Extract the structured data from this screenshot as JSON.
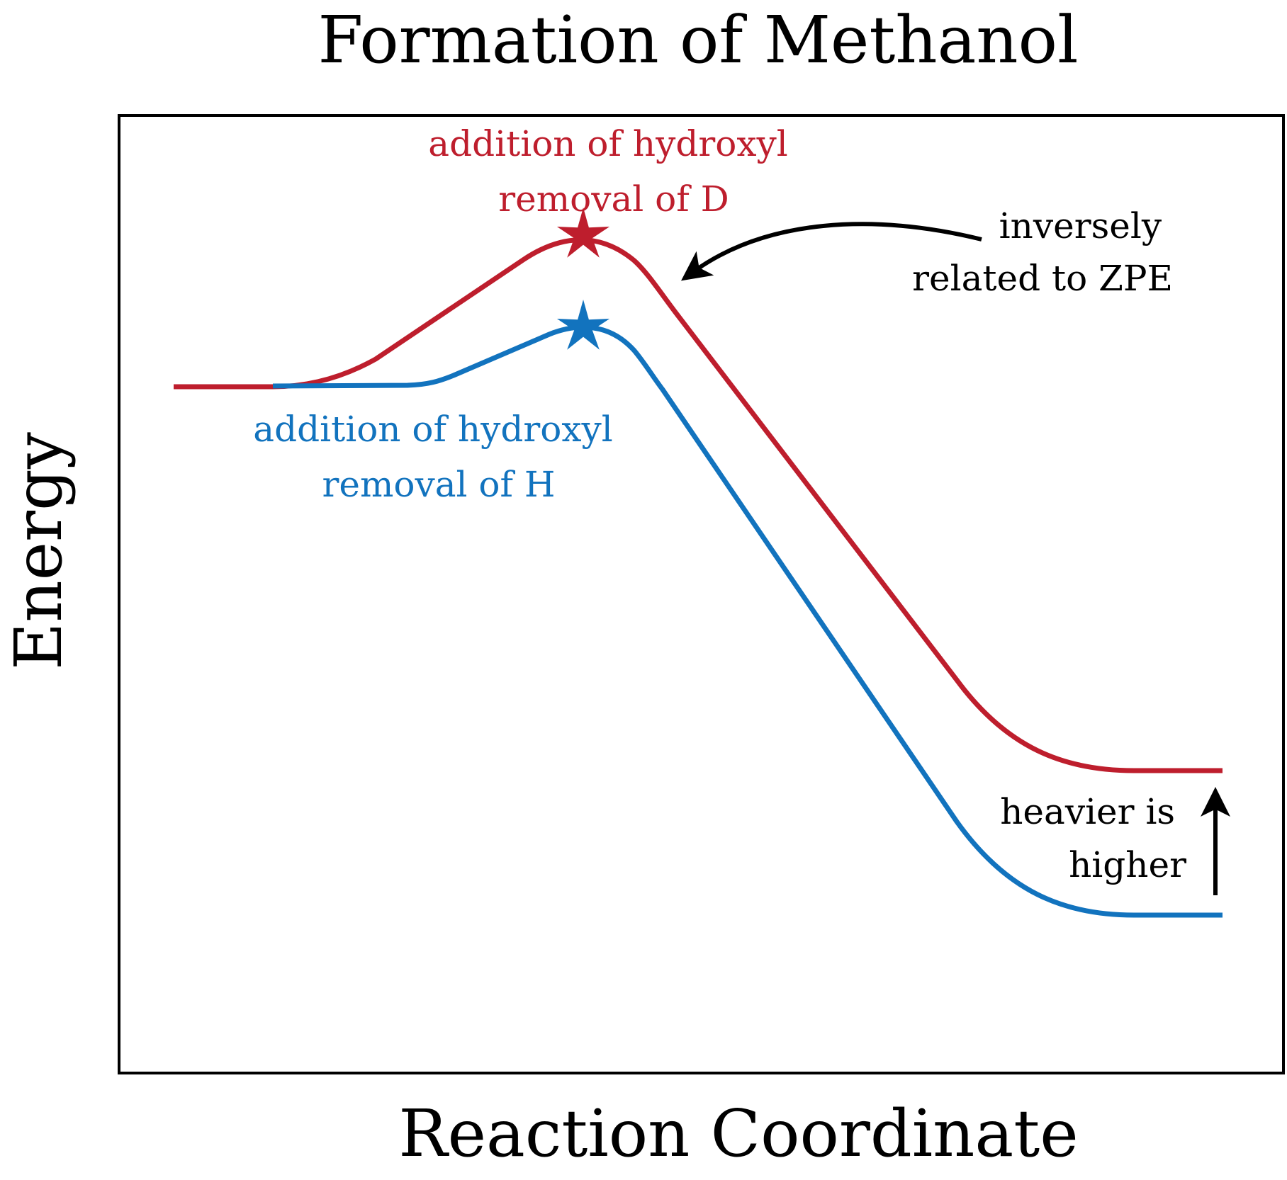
{
  "title": "Formation of Methanol",
  "axes": {
    "x_label": "Reaction Coordinate",
    "y_label": "Energy"
  },
  "pathways": {
    "deuterium": {
      "color": "#be1e2d",
      "label_line1": "addition of hydroxyl",
      "label_line2": "removal of D",
      "marker": "star-icon"
    },
    "hydrogen": {
      "color": "#1273be",
      "label_line1": "addition of hydroxyl",
      "label_line2": "removal of H",
      "marker": "star-icon"
    }
  },
  "annotations": {
    "zpe": {
      "line1": "inversely",
      "line2": "related to ZPE",
      "icon": "curved-arrow-icon"
    },
    "heavier": {
      "line1": "heavier is",
      "line2": "higher",
      "icon": "up-arrow-icon"
    }
  }
}
